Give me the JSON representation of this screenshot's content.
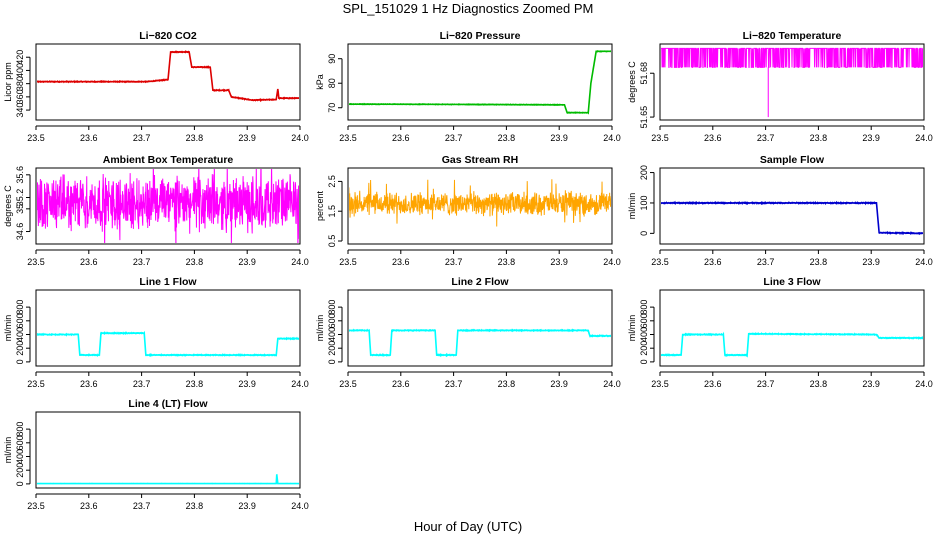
{
  "figure": {
    "title": "SPL_151029  1 Hz Diagnostics Zoomed PM",
    "xlabel": "Hour of Day (UTC)"
  },
  "chart_data": [
    {
      "type": "line",
      "title": "Li−820 CO2",
      "ylabel": "Licor ppm",
      "color": "#dd0000",
      "xlim": [
        23.5,
        24.0
      ],
      "ylim": [
        325,
        440
      ],
      "yticks": [
        340,
        360,
        380,
        400,
        420
      ],
      "noise": 0.6,
      "dense": false,
      "series": [
        {
          "name": "CO2",
          "points": [
            [
              23.5,
              383
            ],
            [
              23.71,
              383
            ],
            [
              23.75,
              386
            ],
            [
              23.755,
              428
            ],
            [
              23.79,
              428
            ],
            [
              23.795,
              405
            ],
            [
              23.83,
              405
            ],
            [
              23.835,
              370
            ],
            [
              23.865,
              370
            ],
            [
              23.87,
              360
            ],
            [
              23.91,
              355
            ],
            [
              23.955,
              356
            ],
            [
              23.958,
              372
            ],
            [
              23.96,
              358
            ],
            [
              24.0,
              358
            ]
          ]
        }
      ]
    },
    {
      "type": "line",
      "title": "Li−820 Pressure",
      "ylabel": "kPa",
      "color": "#00bb00",
      "xlim": [
        23.5,
        24.0
      ],
      "ylim": [
        65,
        96
      ],
      "yticks": [
        70,
        80,
        90
      ],
      "noise": 0.1,
      "dense": false,
      "series": [
        {
          "name": "Pressure",
          "points": [
            [
              23.5,
              71.5
            ],
            [
              23.91,
              71.2
            ],
            [
              23.915,
              68
            ],
            [
              23.955,
              68
            ],
            [
              23.96,
              80
            ],
            [
              23.97,
              93
            ],
            [
              24.0,
              93
            ]
          ]
        }
      ]
    },
    {
      "type": "line",
      "title": "Li−820 Temperature",
      "ylabel": "degrees C",
      "color": "#ff00ff",
      "xlim": [
        23.5,
        24.0
      ],
      "ylim": [
        51.648,
        51.7
      ],
      "yticks": [
        51.65,
        51.68
      ],
      "noise": 0,
      "dense": true,
      "band": [
        51.684,
        51.697
      ],
      "spike": [
        23.705,
        51.65
      ],
      "series": [
        {
          "name": "Temperature",
          "points": [
            [
              23.5,
              51.69
            ],
            [
              24.0,
              51.69
            ]
          ]
        }
      ]
    },
    {
      "type": "line",
      "title": "Ambient Box Temperature",
      "ylabel": "degrees C",
      "color": "#ff00ff",
      "xlim": [
        23.5,
        24.0
      ],
      "ylim": [
        34.38,
        35.72
      ],
      "yticks": [
        34.6,
        35.0,
        35.2,
        35.6
      ],
      "noise": 0.28,
      "dense": true,
      "band": [
        34.55,
        35.65
      ],
      "series": [
        {
          "name": "Box Temp",
          "points": [
            [
              23.5,
              35.1
            ],
            [
              24.0,
              35.1
            ]
          ]
        }
      ]
    },
    {
      "type": "line",
      "title": "Gas Stream RH",
      "ylabel": "percent",
      "color": "#ffa500",
      "xlim": [
        23.5,
        24.0
      ],
      "ylim": [
        0.4,
        2.95
      ],
      "yticks": [
        0.5,
        1.5,
        2.5
      ],
      "noise": 0.25,
      "dense": true,
      "band": [
        1.3,
        2.2
      ],
      "series": [
        {
          "name": "RH",
          "points": [
            [
              23.5,
              1.8
            ],
            [
              24.0,
              1.8
            ]
          ]
        }
      ]
    },
    {
      "type": "line",
      "title": "Sample Flow",
      "ylabel": "ml/min",
      "color": "#0000cc",
      "xlim": [
        23.5,
        24.0
      ],
      "ylim": [
        -35,
        215
      ],
      "yticks": [
        0,
        100,
        200
      ],
      "noise": 1.5,
      "dense": false,
      "series": [
        {
          "name": "Sample Flow",
          "points": [
            [
              23.5,
              100
            ],
            [
              23.91,
              100
            ],
            [
              23.915,
              2
            ],
            [
              24.0,
              0
            ]
          ]
        }
      ]
    },
    {
      "type": "line",
      "title": "Line 1 Flow",
      "ylabel": "ml/min",
      "color": "#00ffff",
      "xlim": [
        23.5,
        24.0
      ],
      "ylim": [
        -60,
        1050
      ],
      "yticks": [
        0,
        200,
        400,
        600,
        800
      ],
      "noise": 6,
      "dense": false,
      "series": [
        {
          "name": "Line 1",
          "points": [
            [
              23.5,
              400
            ],
            [
              23.58,
              400
            ],
            [
              23.583,
              100
            ],
            [
              23.62,
              100
            ],
            [
              23.623,
              420
            ],
            [
              23.705,
              420
            ],
            [
              23.708,
              100
            ],
            [
              23.955,
              100
            ],
            [
              23.958,
              340
            ],
            [
              24.0,
              340
            ]
          ]
        }
      ]
    },
    {
      "type": "line",
      "title": "Line 2 Flow",
      "ylabel": "ml/min",
      "color": "#00ffff",
      "xlim": [
        23.5,
        24.0
      ],
      "ylim": [
        -60,
        1050
      ],
      "yticks": [
        0,
        200,
        400,
        600,
        800
      ],
      "noise": 6,
      "dense": false,
      "series": [
        {
          "name": "Line 2",
          "points": [
            [
              23.5,
              460
            ],
            [
              23.54,
              460
            ],
            [
              23.543,
              100
            ],
            [
              23.58,
              100
            ],
            [
              23.583,
              460
            ],
            [
              23.665,
              460
            ],
            [
              23.668,
              100
            ],
            [
              23.705,
              100
            ],
            [
              23.708,
              460
            ],
            [
              23.955,
              460
            ],
            [
              23.958,
              380
            ],
            [
              24.0,
              380
            ]
          ]
        }
      ]
    },
    {
      "type": "line",
      "title": "Line 3 Flow",
      "ylabel": "ml/min",
      "color": "#00ffff",
      "xlim": [
        23.5,
        24.0
      ],
      "ylim": [
        -60,
        1050
      ],
      "yticks": [
        0,
        200,
        400,
        600,
        800
      ],
      "noise": 6,
      "dense": false,
      "series": [
        {
          "name": "Line 3",
          "points": [
            [
              23.5,
              100
            ],
            [
              23.505,
              100
            ],
            [
              23.54,
              100
            ],
            [
              23.543,
              400
            ],
            [
              23.62,
              400
            ],
            [
              23.623,
              100
            ],
            [
              23.665,
              100
            ],
            [
              23.668,
              410
            ],
            [
              23.91,
              400
            ],
            [
              23.915,
              350
            ],
            [
              24.0,
              350
            ]
          ]
        }
      ]
    },
    {
      "type": "line",
      "title": "Line 4 (LT) Flow",
      "ylabel": "ml/min",
      "color": "#00ffff",
      "xlim": [
        23.5,
        24.0
      ],
      "ylim": [
        -60,
        1050
      ],
      "yticks": [
        0,
        200,
        400,
        600,
        800
      ],
      "noise": 1,
      "dense": false,
      "series": [
        {
          "name": "Line 4",
          "points": [
            [
              23.5,
              5
            ],
            [
              23.955,
              5
            ],
            [
              23.956,
              140
            ],
            [
              23.958,
              5
            ],
            [
              24.0,
              5
            ]
          ]
        }
      ]
    }
  ]
}
